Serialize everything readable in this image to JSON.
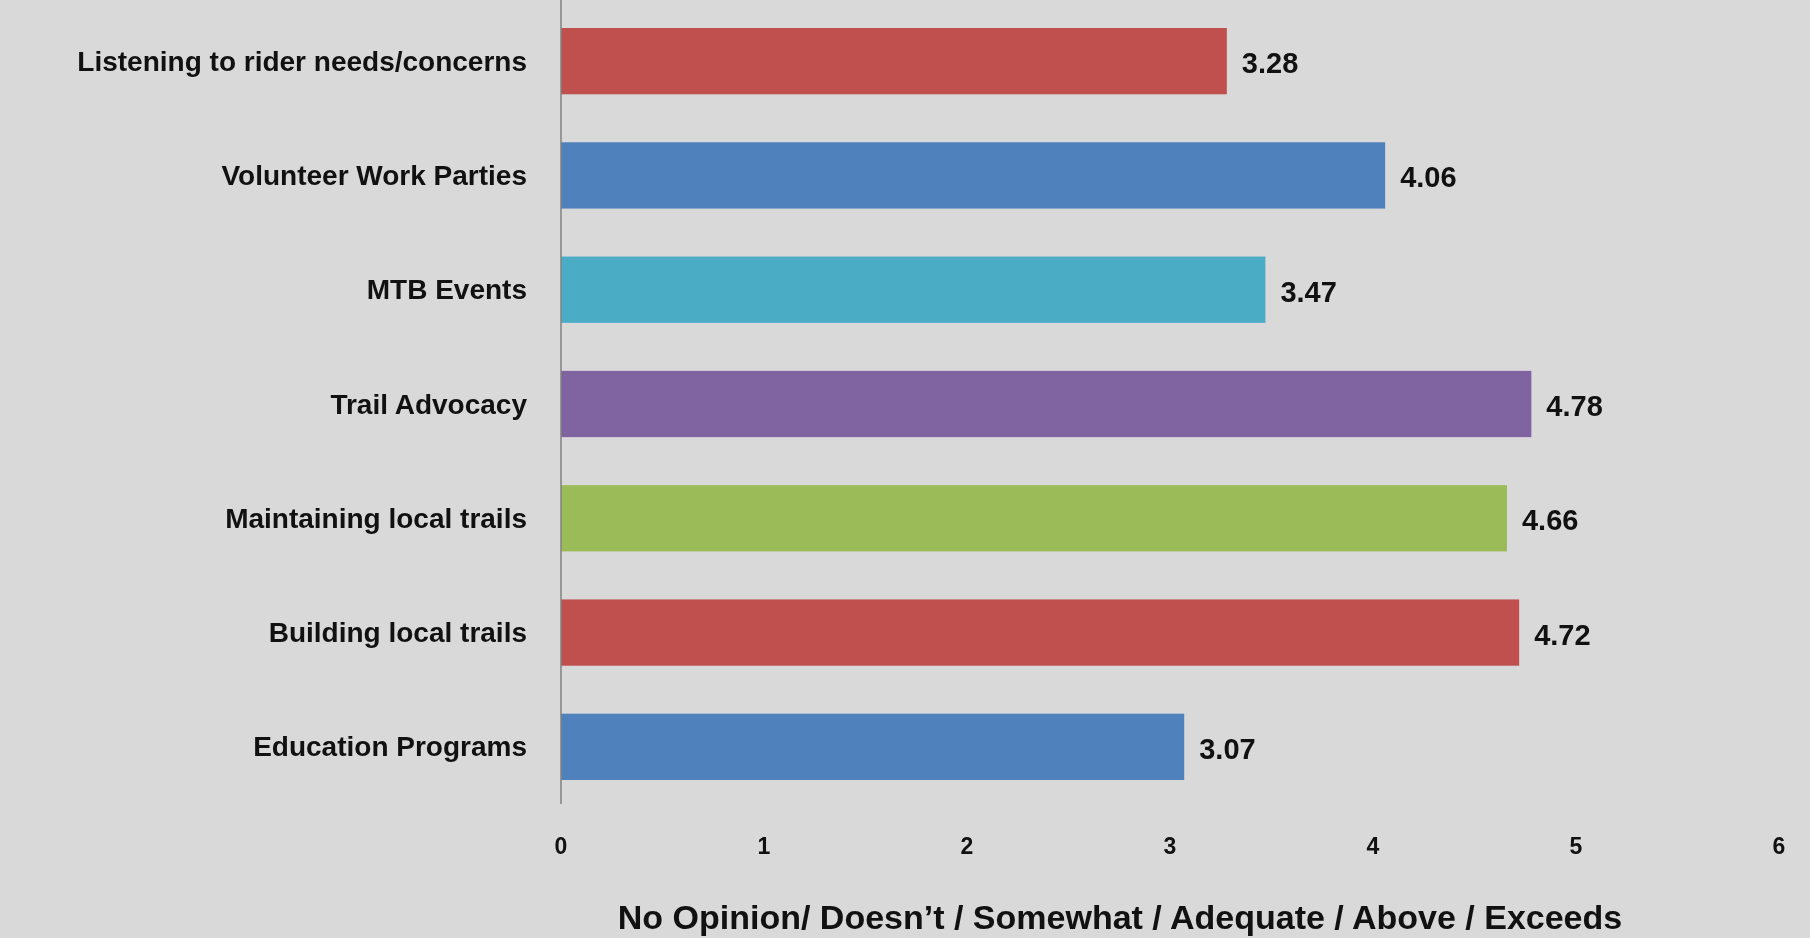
{
  "chart_data": {
    "type": "bar",
    "orientation": "horizontal",
    "xlabel": "No Opinion/ Doesn’t / Somewhat / Adequate / Above / Exceeds",
    "categories": [
      "Listening to rider needs/concerns",
      "Volunteer Work Parties",
      "MTB Events",
      "Trail Advocacy",
      "Maintaining local trails",
      "Building local trails",
      "Education Programs"
    ],
    "values": [
      3.28,
      4.06,
      3.47,
      4.78,
      4.66,
      4.72,
      3.07
    ],
    "colors": [
      "#c0504d",
      "#4f81bd",
      "#4bacc6",
      "#8064a2",
      "#9bbb59",
      "#c0504d",
      "#4f81bd"
    ],
    "xlim": [
      0,
      6
    ],
    "xticks": [
      0,
      1,
      2,
      3,
      4,
      5,
      6
    ],
    "data_labels": true
  }
}
